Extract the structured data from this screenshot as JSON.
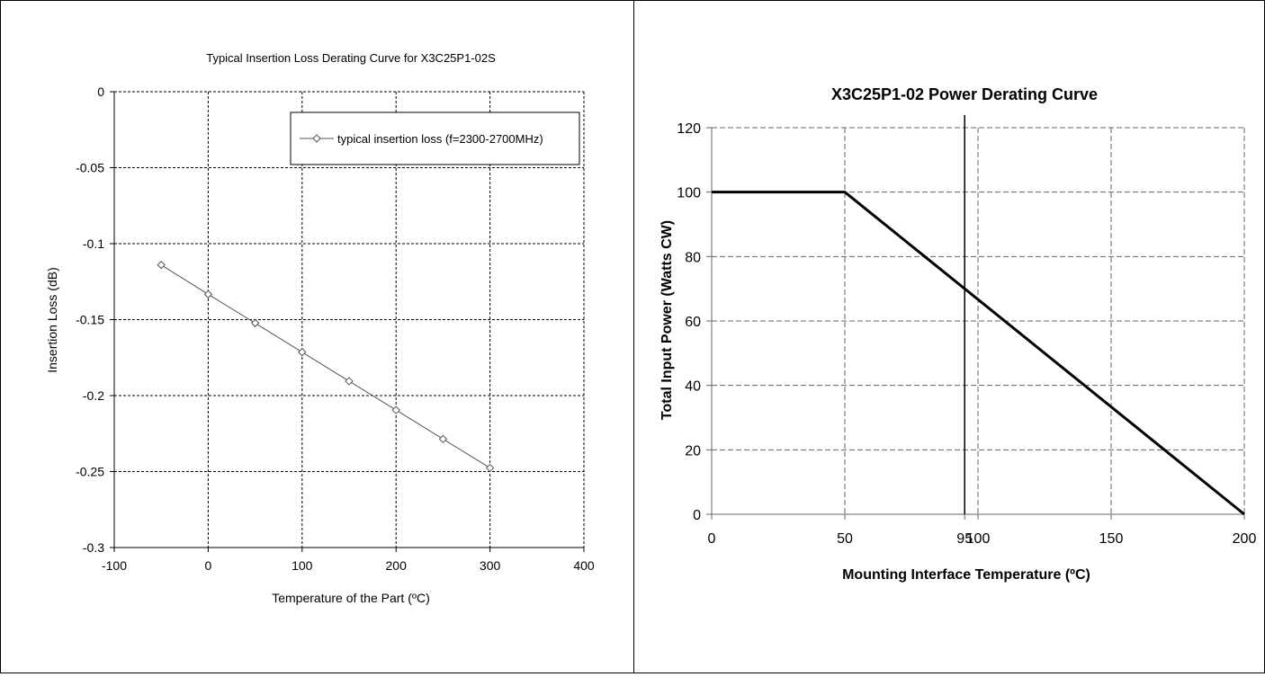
{
  "chart_data": [
    {
      "type": "line",
      "title": "Typical Insertion Loss Derating Curve for X3C25P1-02S",
      "xlabel": "Temperature of the Part  (ºC)",
      "ylabel": "Insertion Loss (dB)",
      "xlim": [
        -100,
        400
      ],
      "ylim": [
        -0.3,
        0
      ],
      "x_ticks": [
        -100,
        0,
        100,
        200,
        300,
        400
      ],
      "y_ticks": [
        0,
        -0.05,
        -0.1,
        -0.15,
        -0.2,
        -0.25,
        -0.3
      ],
      "x_tick_labels": [
        "-100",
        "0",
        "100",
        "200",
        "300",
        "400"
      ],
      "y_tick_labels": [
        "0",
        "-0.05",
        "-0.1",
        "-0.15",
        "-0.2",
        "-0.25",
        "-0.3"
      ],
      "grid": true,
      "legend": "top-right",
      "series": [
        {
          "name": "typical insertion loss (f=2300-2700MHz)",
          "marker": "diamond",
          "color": "#555555",
          "x": [
            -50,
            0,
            50,
            100,
            150,
            200,
            250,
            300
          ],
          "y": [
            -0.114,
            -0.1333,
            -0.1523,
            -0.1714,
            -0.1905,
            -0.2095,
            -0.2286,
            -0.2476
          ]
        }
      ]
    },
    {
      "type": "line",
      "title": "X3C25P1-02 Power Derating Curve",
      "xlabel": "Mounting Interface  Temperature (ºC)",
      "ylabel": "Total Input  Power (Watts CW)",
      "xlim": [
        0,
        200
      ],
      "ylim": [
        0,
        120
      ],
      "x_ticks": [
        0,
        50,
        95,
        100,
        150,
        200
      ],
      "y_ticks": [
        0,
        20,
        40,
        60,
        80,
        100,
        120
      ],
      "x_tick_labels": [
        "0",
        "50",
        "95",
        "100",
        "150",
        "200"
      ],
      "y_tick_labels": [
        "0",
        "20",
        "40",
        "60",
        "80",
        "100",
        "120"
      ],
      "grid": true,
      "vertical_line_x": 95,
      "series": [
        {
          "color": "#000000",
          "x": [
            0,
            50,
            200
          ],
          "y": [
            100,
            100,
            0
          ]
        }
      ]
    }
  ]
}
